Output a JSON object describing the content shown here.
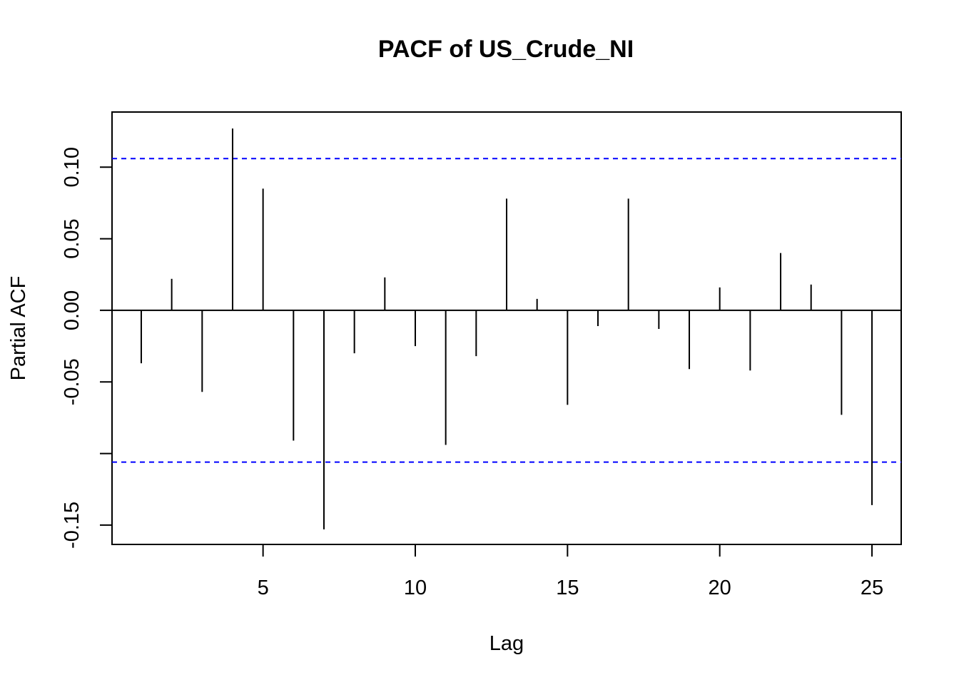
{
  "chart_data": {
    "type": "bar",
    "title": "PACF of US_Crude_NI",
    "xlabel": "Lag",
    "ylabel": "Partial ACF",
    "x": [
      1,
      2,
      3,
      4,
      5,
      6,
      7,
      8,
      9,
      10,
      11,
      12,
      13,
      14,
      15,
      16,
      17,
      18,
      19,
      20,
      21,
      22,
      23,
      24,
      25
    ],
    "values": [
      -0.037,
      0.022,
      -0.057,
      0.127,
      0.085,
      -0.091,
      -0.153,
      -0.03,
      0.023,
      -0.025,
      -0.094,
      -0.032,
      0.078,
      0.008,
      -0.066,
      -0.011,
      0.078,
      -0.013,
      -0.041,
      0.016,
      -0.042,
      0.04,
      0.018,
      -0.073,
      -0.136
    ],
    "confidence_limit": 0.106,
    "xlim": [
      0.04,
      25.96
    ],
    "ylim": [
      -0.1635,
      0.1385
    ],
    "xticks": [
      5,
      10,
      15,
      20,
      25
    ],
    "xtick_labels": [
      "5",
      "10",
      "15",
      "20",
      "25"
    ],
    "yticks": [
      -0.15,
      -0.1,
      -0.05,
      0.0,
      0.05,
      0.1
    ],
    "ytick_labels": [
      "-0.15",
      "",
      "-0.05",
      "0.00",
      "0.05",
      "0.10"
    ],
    "colors": {
      "bars": "#000000",
      "confidence": "#0000ff",
      "zero_line": "#000000",
      "frame": "#000000"
    }
  }
}
